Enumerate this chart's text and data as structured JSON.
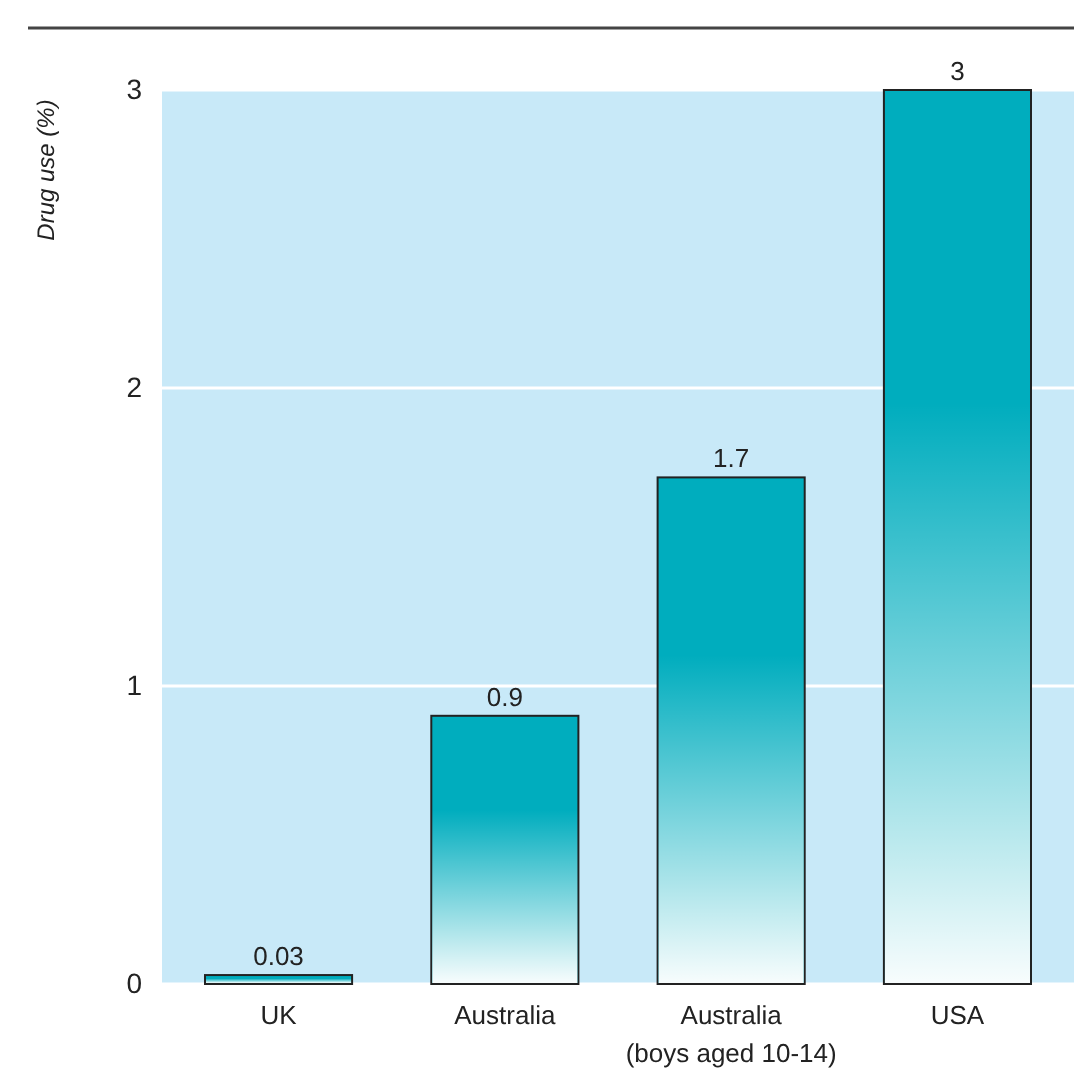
{
  "chart_data": {
    "type": "bar",
    "ylabel": "Drug use (%)",
    "categories": [
      "UK",
      "Australia",
      "Australia\n(boys aged 10-14)",
      "USA"
    ],
    "values": [
      0.03,
      0.9,
      1.7,
      3
    ],
    "color": "#00adbe",
    "ylim": [
      0,
      3
    ],
    "yticks": [
      0,
      1,
      2,
      3
    ],
    "grid": "y",
    "data_labels": true
  }
}
